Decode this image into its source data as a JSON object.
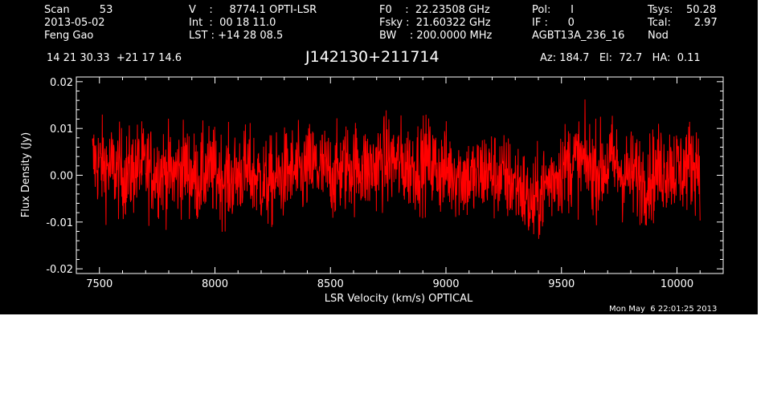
{
  "header": {
    "col1": [
      "Scan         53",
      "2013-05-02",
      "Feng Gao"
    ],
    "col2": [
      "V    :     8774.1 OPTI-LSR",
      "Int  :  00 18 11.0",
      "LST : +14 28 08.5"
    ],
    "col3": [
      "F0    :  22.23508 GHz",
      "Fsky :  21.60322 GHz",
      "BW    : 200.0000 MHz"
    ],
    "col4": [
      "Pol:      I",
      "IF :      0",
      "AGBT13A_236_16"
    ],
    "col5": [
      "Tsys:    50.28",
      "Tcal:       2.97",
      "Nod"
    ],
    "coords": "14 21 30.33  +21 17 14.6",
    "source": "J142130+211714",
    "pointing": "Az: 184.7   El:  72.7   HA:  0.11",
    "timestamp": "Mon May  6 22:01:25 2013"
  },
  "colors": {
    "background": "#000000",
    "axes": "#ffffff",
    "series": "#ff0000"
  },
  "chart_data": {
    "type": "line",
    "title": "J142130+211714",
    "xlabel": "LSR Velocity (km/s) OPTICAL",
    "ylabel": "Flux Density (Jy)",
    "xlim": [
      7400,
      10200
    ],
    "ylim": [
      -0.021,
      0.021
    ],
    "xticks": [
      7500,
      8000,
      8500,
      9000,
      9500,
      10000
    ],
    "xtick_labels": [
      "7500",
      "8000",
      "8500",
      "9000",
      "9500",
      "10000"
    ],
    "yticks": [
      -0.02,
      -0.01,
      0.0,
      0.01,
      0.02
    ],
    "ytick_labels": [
      "-0.02",
      "-0.01",
      "0.00",
      "0.01",
      "0.02"
    ],
    "grid": false,
    "series": [
      {
        "x": [
          7470,
          7520,
          7570,
          7620,
          7670,
          7720,
          7770,
          7820,
          7870,
          7920,
          7970,
          8020,
          8070,
          8120,
          8170,
          8220,
          8270,
          8320,
          8370,
          8420,
          8470,
          8520,
          8570,
          8620,
          8670,
          8720,
          8770,
          8820,
          8870,
          8920,
          8970,
          9020,
          9070,
          9120,
          9170,
          9220,
          9270,
          9320,
          9370,
          9420,
          9470,
          9520,
          9570,
          9620,
          9670,
          9720,
          9770,
          9820,
          9870,
          9920,
          9970,
          10020,
          10070,
          10100
        ],
        "values": [
          0.003,
          0.002,
          0.001,
          0.0,
          0.002,
          0.001,
          0.001,
          0.0,
          0.002,
          -0.001,
          0.001,
          0.0,
          -0.001,
          0.001,
          0.0,
          -0.002,
          -0.001,
          0.001,
          0.0,
          0.002,
          0.001,
          0.0,
          0.002,
          0.002,
          0.001,
          0.003,
          0.003,
          0.002,
          0.002,
          0.003,
          0.001,
          0.001,
          0.0,
          -0.001,
          0.001,
          0.0,
          -0.001,
          -0.002,
          -0.007,
          -0.003,
          0.0,
          0.002,
          0.003,
          0.002,
          0.001,
          0.003,
          0.0,
          0.0,
          -0.001,
          0.001,
          0.002,
          0.001,
          0.003,
          0.002
        ]
      }
    ]
  }
}
